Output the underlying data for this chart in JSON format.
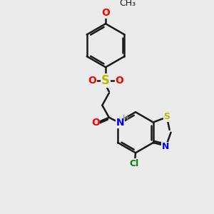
{
  "bg_color": "#ebebeb",
  "bond_color": "#1a1a1a",
  "atom_colors": {
    "O": "#ff0000",
    "S": "#b8b800",
    "N": "#0000ee",
    "Cl": "#008000",
    "H": "#888888",
    "C": "#1a1a1a"
  },
  "lw": 1.8,
  "fs": 10,
  "ring_r": 30,
  "bz_r": 27
}
